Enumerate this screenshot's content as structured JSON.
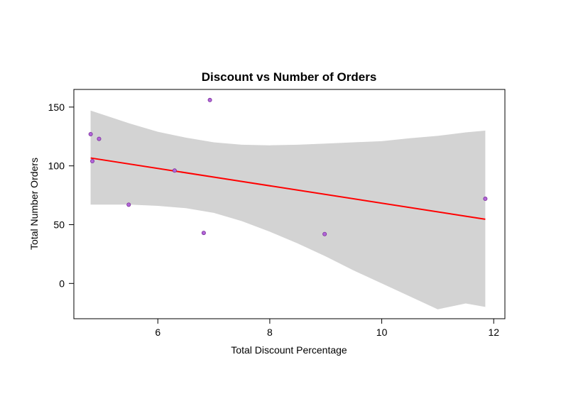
{
  "chart_data": {
    "type": "scatter",
    "title": "Discount vs Number of Orders",
    "xlabel": "Total Discount Percentage",
    "ylabel": "Total Number Orders",
    "xlim": [
      4.5,
      12.2
    ],
    "ylim": [
      -30,
      165
    ],
    "x_ticks": [
      6,
      8,
      10,
      12
    ],
    "y_ticks": [
      0,
      50,
      100,
      150
    ],
    "grid": false,
    "legend": "none",
    "points": [
      {
        "x": 4.8,
        "y": 127
      },
      {
        "x": 4.83,
        "y": 104
      },
      {
        "x": 4.95,
        "y": 123
      },
      {
        "x": 5.48,
        "y": 67
      },
      {
        "x": 6.3,
        "y": 96
      },
      {
        "x": 6.82,
        "y": 43
      },
      {
        "x": 6.93,
        "y": 156
      },
      {
        "x": 8.98,
        "y": 42
      },
      {
        "x": 11.85,
        "y": 72
      }
    ],
    "trend_line": {
      "method": "linear fit",
      "x": [
        4.8,
        11.85
      ],
      "y": [
        106.7,
        54.6
      ]
    },
    "confidence_band": {
      "x": [
        4.8,
        5.5,
        6.0,
        6.5,
        7.0,
        7.5,
        8.0,
        8.5,
        9.0,
        9.5,
        10.0,
        10.5,
        11.0,
        11.5,
        11.85
      ],
      "upper": [
        147,
        136,
        129,
        124,
        120,
        118,
        117.5,
        118,
        119,
        120,
        121,
        123.5,
        125.5,
        128.5,
        130
      ],
      "lower": [
        67,
        67,
        66,
        64,
        60,
        53,
        44,
        34,
        23,
        11,
        0,
        -11,
        -22,
        -17,
        -20
      ]
    },
    "colors": {
      "points_fill": "#b266d9",
      "points_edge": "#7a2f99",
      "trend_line": "#ff0000",
      "confidence_band": "#d3d3d3"
    }
  }
}
